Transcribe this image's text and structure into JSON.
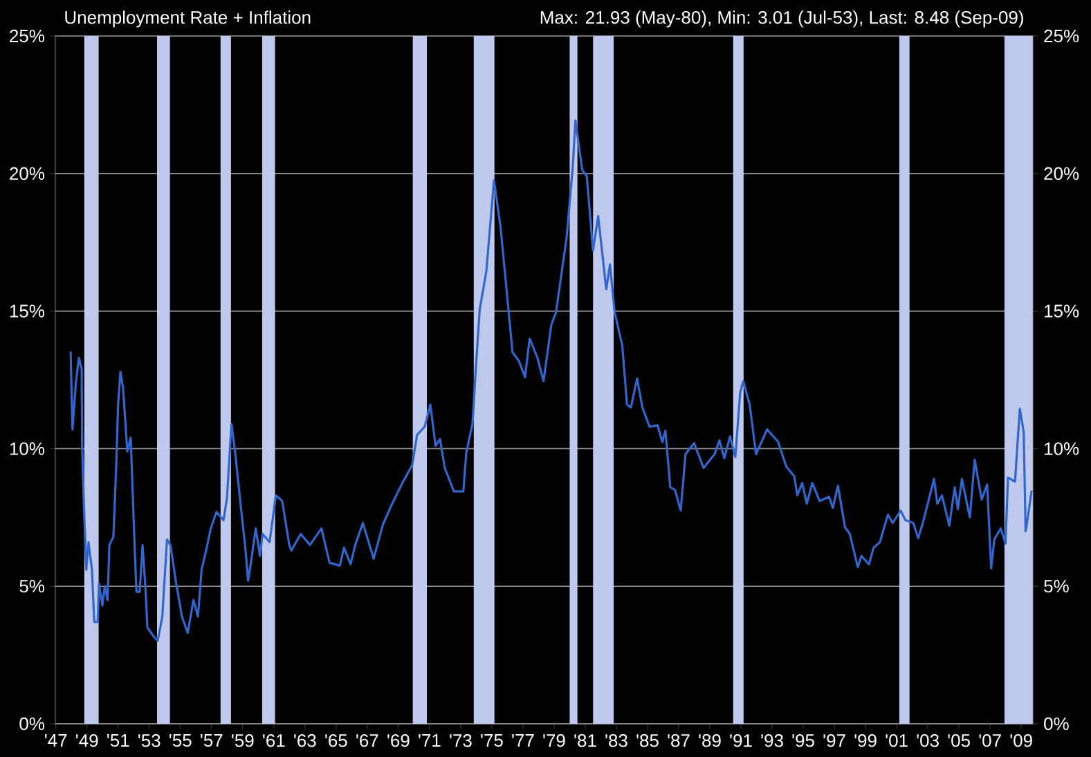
{
  "chart_data": {
    "type": "line",
    "title": "Unemployment Rate + Inflation",
    "subtitle": "Max: 21.93 (May-80), Min: 3.01 (Jul-53), Last: 8.48 (Sep-09)",
    "x": [
      1947.95,
      1948.07,
      1948.29,
      1948.48,
      1948.66,
      1948.69,
      1948.8,
      1948.96,
      1949.1,
      1949.32,
      1949.47,
      1949.69,
      1949.77,
      1949.99,
      1950.14,
      1950.32,
      1950.44,
      1950.7,
      1950.88,
      1951.0,
      1951.15,
      1951.32,
      1951.59,
      1951.81,
      1952.07,
      1952.18,
      1952.39,
      1952.57,
      1952.76,
      1952.88,
      1953.25,
      1953.54,
      1953.84,
      1954.14,
      1954.36,
      1954.73,
      1955.1,
      1955.47,
      1955.84,
      1956.13,
      1956.36,
      1956.65,
      1956.95,
      1957.32,
      1957.77,
      1957.99,
      1958.28,
      1958.51,
      1958.88,
      1959.17,
      1959.35,
      1959.54,
      1959.84,
      1960.11,
      1960.28,
      1960.73,
      1961.13,
      1961.54,
      1961.99,
      1962.13,
      1962.73,
      1963.32,
      1964.06,
      1964.58,
      1965.24,
      1965.51,
      1965.93,
      1966.23,
      1966.72,
      1967.41,
      1968.01,
      1968.6,
      1969.3,
      1969.89,
      1970.2,
      1970.69,
      1971.05,
      1971.39,
      1971.67,
      1971.98,
      1972.56,
      1973.17,
      1973.36,
      1973.76,
      1973.96,
      1974.22,
      1974.65,
      1975.14,
      1975.55,
      1975.85,
      1976.33,
      1976.73,
      1977.13,
      1977.43,
      1977.93,
      1978.32,
      1978.82,
      1979.12,
      1979.8,
      1980.2,
      1980.37,
      1980.8,
      1981.1,
      1981.5,
      1981.83,
      1982.35,
      1982.59,
      1982.89,
      1983.38,
      1983.68,
      1983.93,
      1984.33,
      1984.67,
      1985.13,
      1985.64,
      1985.95,
      1986.15,
      1986.46,
      1986.77,
      1987.13,
      1987.44,
      1987.99,
      1988.6,
      1989.31,
      1989.62,
      1989.93,
      1990.3,
      1990.64,
      1990.95,
      1991.15,
      1991.56,
      1991.97,
      1992.68,
      1993.39,
      1993.91,
      1994.42,
      1994.62,
      1994.93,
      1995.23,
      1995.58,
      1996.05,
      1996.66,
      1996.9,
      1997.23,
      1997.68,
      1997.99,
      1998.5,
      1998.74,
      1999.22,
      1999.52,
      1999.92,
      2000.44,
      2000.74,
      2001.26,
      2001.56,
      2002.07,
      2002.38,
      2002.68,
      2003.4,
      2003.61,
      2003.91,
      2004.38,
      2004.73,
      2004.93,
      2005.19,
      2005.7,
      2006.01,
      2006.46,
      2006.81,
      2007.07,
      2007.27,
      2007.68,
      2007.99,
      2008.15,
      2008.6,
      2008.91,
      2009.16,
      2009.28,
      2009.45,
      2009.67
    ],
    "series": [
      {
        "color": "#3366cc",
        "values": [
          13.53,
          10.7,
          12.4,
          13.3,
          12.9,
          10.1,
          8.0,
          5.6,
          6.6,
          5.6,
          3.7,
          3.7,
          5.1,
          4.3,
          5.0,
          4.5,
          6.5,
          6.8,
          9.4,
          11.6,
          12.8,
          12.2,
          9.9,
          10.4,
          6.3,
          4.8,
          4.8,
          6.5,
          4.9,
          3.5,
          3.2,
          3.01,
          3.9,
          6.7,
          6.5,
          5.1,
          3.9,
          3.3,
          4.5,
          3.9,
          5.6,
          6.3,
          7.1,
          7.7,
          7.4,
          8.2,
          10.9,
          9.9,
          7.9,
          6.4,
          5.2,
          5.9,
          7.1,
          6.1,
          6.9,
          6.6,
          8.3,
          8.1,
          6.5,
          6.3,
          6.9,
          6.5,
          7.1,
          5.85,
          5.75,
          6.4,
          5.8,
          6.5,
          7.3,
          6.0,
          7.25,
          8.0,
          8.8,
          9.4,
          10.5,
          10.8,
          11.6,
          10.1,
          10.35,
          9.3,
          8.45,
          8.45,
          9.85,
          10.9,
          12.8,
          15.05,
          16.45,
          19.75,
          18.1,
          16.35,
          13.5,
          13.2,
          12.6,
          14.0,
          13.3,
          12.45,
          14.5,
          14.95,
          17.65,
          20.25,
          21.93,
          20.15,
          19.9,
          17.2,
          18.45,
          15.8,
          16.7,
          14.95,
          13.75,
          11.6,
          11.5,
          12.55,
          11.5,
          10.8,
          10.85,
          10.25,
          10.65,
          8.6,
          8.5,
          7.75,
          9.8,
          10.2,
          9.3,
          9.8,
          10.3,
          9.65,
          10.45,
          9.7,
          12.05,
          12.45,
          11.6,
          9.8,
          10.7,
          10.25,
          9.35,
          9.0,
          8.3,
          8.75,
          8.0,
          8.75,
          8.1,
          8.25,
          7.85,
          8.65,
          7.15,
          6.9,
          5.7,
          6.1,
          5.8,
          6.4,
          6.6,
          7.6,
          7.3,
          7.75,
          7.4,
          7.3,
          6.75,
          7.3,
          8.9,
          8.0,
          8.3,
          7.2,
          8.6,
          7.8,
          8.9,
          7.5,
          9.6,
          8.15,
          8.7,
          5.65,
          6.7,
          7.1,
          6.55,
          8.95,
          8.8,
          11.45,
          10.6,
          7.0,
          7.6,
          8.48
        ]
      }
    ],
    "xlim": [
      1946.97,
      2009.75
    ],
    "ylim": [
      0,
      25
    ],
    "y2lim": [
      0,
      25
    ],
    "xticks": [
      {
        "value": 1947,
        "label": "'47"
      },
      {
        "value": 1949,
        "label": "'49"
      },
      {
        "value": 1951,
        "label": "'51"
      },
      {
        "value": 1953,
        "label": "'53"
      },
      {
        "value": 1955,
        "label": "'55"
      },
      {
        "value": 1957,
        "label": "'57"
      },
      {
        "value": 1959,
        "label": "'59"
      },
      {
        "value": 1961,
        "label": "'61"
      },
      {
        "value": 1963,
        "label": "'63"
      },
      {
        "value": 1965,
        "label": "'65"
      },
      {
        "value": 1967,
        "label": "'67"
      },
      {
        "value": 1969,
        "label": "'69"
      },
      {
        "value": 1971,
        "label": "'71"
      },
      {
        "value": 1973,
        "label": "'73"
      },
      {
        "value": 1975,
        "label": "'75"
      },
      {
        "value": 1977,
        "label": "'77"
      },
      {
        "value": 1979,
        "label": "'79"
      },
      {
        "value": 1981,
        "label": "'81"
      },
      {
        "value": 1983,
        "label": "'83"
      },
      {
        "value": 1985,
        "label": "'85"
      },
      {
        "value": 1987,
        "label": "'87"
      },
      {
        "value": 1989,
        "label": "'89"
      },
      {
        "value": 1991,
        "label": "'91"
      },
      {
        "value": 1993,
        "label": "'93"
      },
      {
        "value": 1995,
        "label": "'95"
      },
      {
        "value": 1997,
        "label": "'97"
      },
      {
        "value": 1999,
        "label": "'99"
      },
      {
        "value": 2001,
        "label": "'01"
      },
      {
        "value": 2003,
        "label": "'03"
      },
      {
        "value": 2005,
        "label": "'05"
      },
      {
        "value": 2007,
        "label": "'07"
      },
      {
        "value": 2009,
        "label": "'09"
      }
    ],
    "yticks": [
      {
        "value": 0,
        "label": "0%"
      },
      {
        "value": 5,
        "label": "5%"
      },
      {
        "value": 10,
        "label": "10%"
      },
      {
        "value": 15,
        "label": "15%"
      },
      {
        "value": 20,
        "label": "20%"
      },
      {
        "value": 25,
        "label": "25%"
      }
    ],
    "y2ticks": [
      {
        "value": 0,
        "label": "0%"
      },
      {
        "value": 5,
        "label": "5%"
      },
      {
        "value": 10,
        "label": "10%"
      },
      {
        "value": 15,
        "label": "15%"
      },
      {
        "value": 20,
        "label": "20%"
      },
      {
        "value": 25,
        "label": "25%"
      }
    ],
    "bands": [
      {
        "axis": "x",
        "from": 1948.83,
        "to": 1949.75,
        "color": "#bfc9ee"
      },
      {
        "axis": "x",
        "from": 1953.5,
        "to": 1954.33,
        "color": "#bfc9ee"
      },
      {
        "axis": "x",
        "from": 1957.58,
        "to": 1958.25,
        "color": "#bfc9ee"
      },
      {
        "axis": "x",
        "from": 1960.25,
        "to": 1961.08,
        "color": "#bfc9ee"
      },
      {
        "axis": "x",
        "from": 1969.92,
        "to": 1970.83,
        "color": "#bfc9ee"
      },
      {
        "axis": "x",
        "from": 1973.83,
        "to": 1975.17,
        "color": "#bfc9ee"
      },
      {
        "axis": "x",
        "from": 1980.0,
        "to": 1980.5,
        "color": "#bfc9ee"
      },
      {
        "axis": "x",
        "from": 1981.5,
        "to": 1982.83,
        "color": "#bfc9ee"
      },
      {
        "axis": "x",
        "from": 1990.5,
        "to": 1991.17,
        "color": "#bfc9ee"
      },
      {
        "axis": "x",
        "from": 2001.17,
        "to": 2001.83,
        "color": "#bfc9ee"
      },
      {
        "axis": "x",
        "from": 2007.92,
        "to": 2009.75,
        "color": "#bfc9ee"
      }
    ],
    "grid": "y",
    "line_style": "solid"
  }
}
